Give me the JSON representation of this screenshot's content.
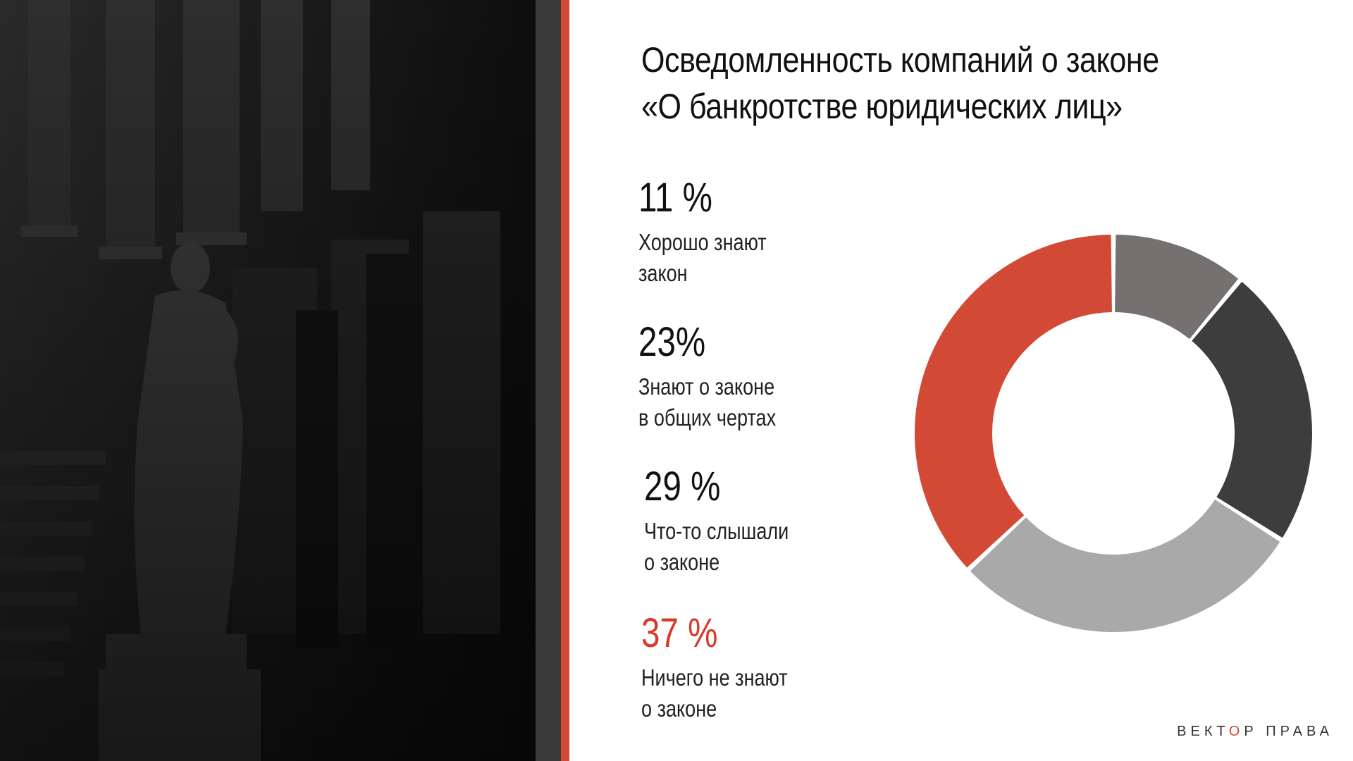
{
  "title_line1": "Осведомленность компаний о законе",
  "title_line2": "«О банкротстве юридических лиц»",
  "stats": [
    {
      "pct": "11 %",
      "line1": "Хорошо знают",
      "line2": "закон"
    },
    {
      "pct": "23%",
      "line1": "Знают о законе",
      "line2": "в общих чертах"
    },
    {
      "pct": "29 %",
      "line1": "Что-то слышали",
      "line2": "о законе"
    },
    {
      "pct": "37 %",
      "line1": "Ничего не знают",
      "line2": "о законе"
    }
  ],
  "logo": {
    "part1": "ВЕКТ",
    "part2": "О",
    "part3": "Р ПРАВА"
  },
  "colors": {
    "accent": "#d24a35",
    "dark": "#3a3a3a"
  },
  "chart_data": {
    "type": "pie",
    "variant": "donut",
    "categories": [
      "Хорошо знают закон",
      "Знают о законе в общих чертах",
      "Что-то слышали о законе",
      "Ничего не знают о законе"
    ],
    "values": [
      11,
      23,
      29,
      37
    ],
    "colors": [
      "#757171",
      "#3d3d3d",
      "#a9a9a9",
      "#d24a35"
    ]
  }
}
